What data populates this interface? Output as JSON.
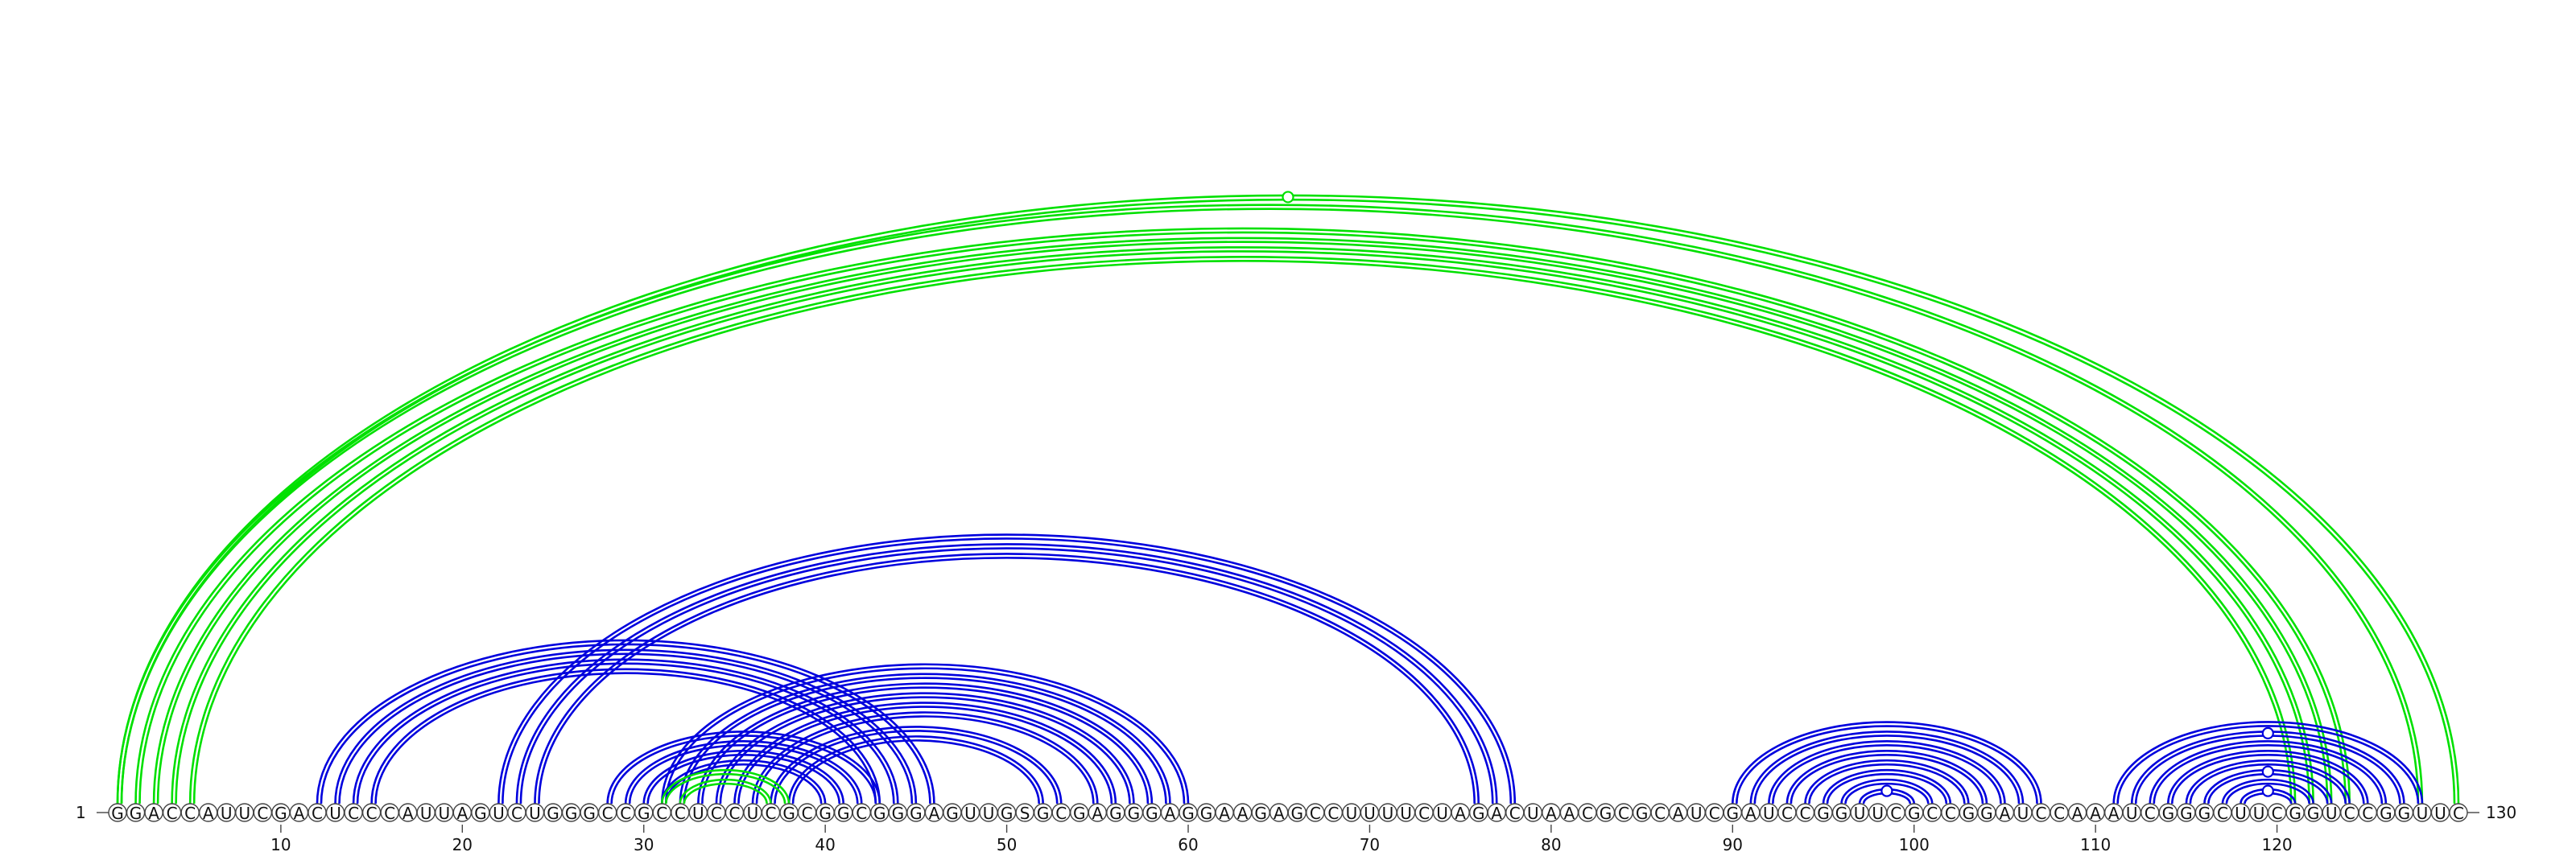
{
  "chart_data": {
    "type": "arc-diagram",
    "sequence": "GGACCAUUCGACUCCCAUUAGUCUGGGCCGCCUCCUCGCGGCGGGAGUUGSGCGAGGGAGGAAGAGCCUUUUCUAGACUAACGCGCAUCGAUCCGGUUCGCCGGAUCCAAAUCGGGCUUCGGUCCGGUUC",
    "start_label": "1",
    "end_label": "130",
    "tick_labels": [
      "10",
      "20",
      "30",
      "40",
      "50",
      "60",
      "70",
      "80",
      "90",
      "100",
      "110",
      "120"
    ],
    "tick_positions": [
      10,
      20,
      30,
      40,
      50,
      60,
      70,
      80,
      90,
      100,
      110,
      120
    ],
    "colors": {
      "blue_arcs": "#0000dd",
      "green_arcs": "#00e000",
      "outline": "#444444"
    },
    "arcs": [
      {
        "from": 1,
        "to": 128,
        "color": "green",
        "style": "double"
      },
      {
        "from": 2,
        "to": 124,
        "color": "green",
        "style": "double"
      },
      {
        "from": 3,
        "to": 123,
        "color": "green",
        "style": "double"
      },
      {
        "from": 4,
        "to": 122,
        "color": "green",
        "style": "double"
      },
      {
        "from": 5,
        "to": 121,
        "color": "green",
        "style": "double"
      },
      {
        "from": 1,
        "to": 130,
        "color": "green",
        "style": "double"
      },
      {
        "from": 12,
        "to": 46,
        "color": "blue",
        "style": "double"
      },
      {
        "from": 13,
        "to": 45,
        "color": "blue",
        "style": "double"
      },
      {
        "from": 14,
        "to": 44,
        "color": "blue",
        "style": "double"
      },
      {
        "from": 15,
        "to": 43,
        "color": "blue",
        "style": "double"
      },
      {
        "from": 22,
        "to": 78,
        "color": "blue",
        "style": "double"
      },
      {
        "from": 23,
        "to": 77,
        "color": "blue",
        "style": "double"
      },
      {
        "from": 24,
        "to": 76,
        "color": "blue",
        "style": "double"
      },
      {
        "from": 28,
        "to": 43,
        "color": "blue",
        "style": "double"
      },
      {
        "from": 29,
        "to": 42,
        "color": "blue",
        "style": "double"
      },
      {
        "from": 30,
        "to": 41,
        "color": "blue",
        "style": "double"
      },
      {
        "from": 31,
        "to": 40,
        "color": "blue",
        "style": "double"
      },
      {
        "from": 31,
        "to": 60,
        "color": "blue",
        "style": "double"
      },
      {
        "from": 32,
        "to": 59,
        "color": "blue",
        "style": "double"
      },
      {
        "from": 33,
        "to": 58,
        "color": "blue",
        "style": "double"
      },
      {
        "from": 34,
        "to": 57,
        "color": "blue",
        "style": "double"
      },
      {
        "from": 35,
        "to": 56,
        "color": "blue",
        "style": "double"
      },
      {
        "from": 36,
        "to": 55,
        "color": "blue",
        "style": "double"
      },
      {
        "from": 37,
        "to": 53,
        "color": "blue",
        "style": "double"
      },
      {
        "from": 38,
        "to": 52,
        "color": "blue",
        "style": "double"
      },
      {
        "from": 31,
        "to": 38,
        "color": "green",
        "style": "double"
      },
      {
        "from": 32,
        "to": 37,
        "color": "green",
        "style": "double"
      },
      {
        "from": 90,
        "to": 107,
        "color": "blue",
        "style": "double"
      },
      {
        "from": 91,
        "to": 106,
        "color": "blue",
        "style": "double"
      },
      {
        "from": 92,
        "to": 105,
        "color": "blue",
        "style": "double"
      },
      {
        "from": 93,
        "to": 104,
        "color": "blue",
        "style": "double"
      },
      {
        "from": 94,
        "to": 103,
        "color": "blue",
        "style": "double"
      },
      {
        "from": 95,
        "to": 102,
        "color": "blue",
        "style": "double"
      },
      {
        "from": 96,
        "to": 101,
        "color": "blue",
        "style": "double"
      },
      {
        "from": 97,
        "to": 100,
        "color": "blue",
        "style": "double"
      },
      {
        "from": 111,
        "to": 128,
        "color": "blue",
        "style": "double"
      },
      {
        "from": 112,
        "to": 127,
        "color": "blue",
        "style": "double"
      },
      {
        "from": 113,
        "to": 126,
        "color": "blue",
        "style": "double"
      },
      {
        "from": 114,
        "to": 125,
        "color": "blue",
        "style": "double"
      },
      {
        "from": 115,
        "to": 124,
        "color": "blue",
        "style": "double"
      },
      {
        "from": 116,
        "to": 123,
        "color": "blue",
        "style": "double"
      },
      {
        "from": 117,
        "to": 122,
        "color": "blue",
        "style": "double"
      },
      {
        "from": 118,
        "to": 121,
        "color": "blue",
        "style": "double"
      }
    ],
    "markers": [
      {
        "at": 65.5,
        "arc_from": 1,
        "arc_to": 130,
        "color": "green"
      },
      {
        "at": 98.5,
        "arc_from": 97,
        "arc_to": 100,
        "color": "blue"
      },
      {
        "at": 119.5,
        "arc_from": 118,
        "arc_to": 121,
        "color": "blue"
      },
      {
        "at": 119.5,
        "arc_from": 116,
        "arc_to": 123,
        "color": "blue"
      },
      {
        "at": 119.5,
        "arc_from": 112,
        "arc_to": 127,
        "color": "blue"
      }
    ]
  }
}
